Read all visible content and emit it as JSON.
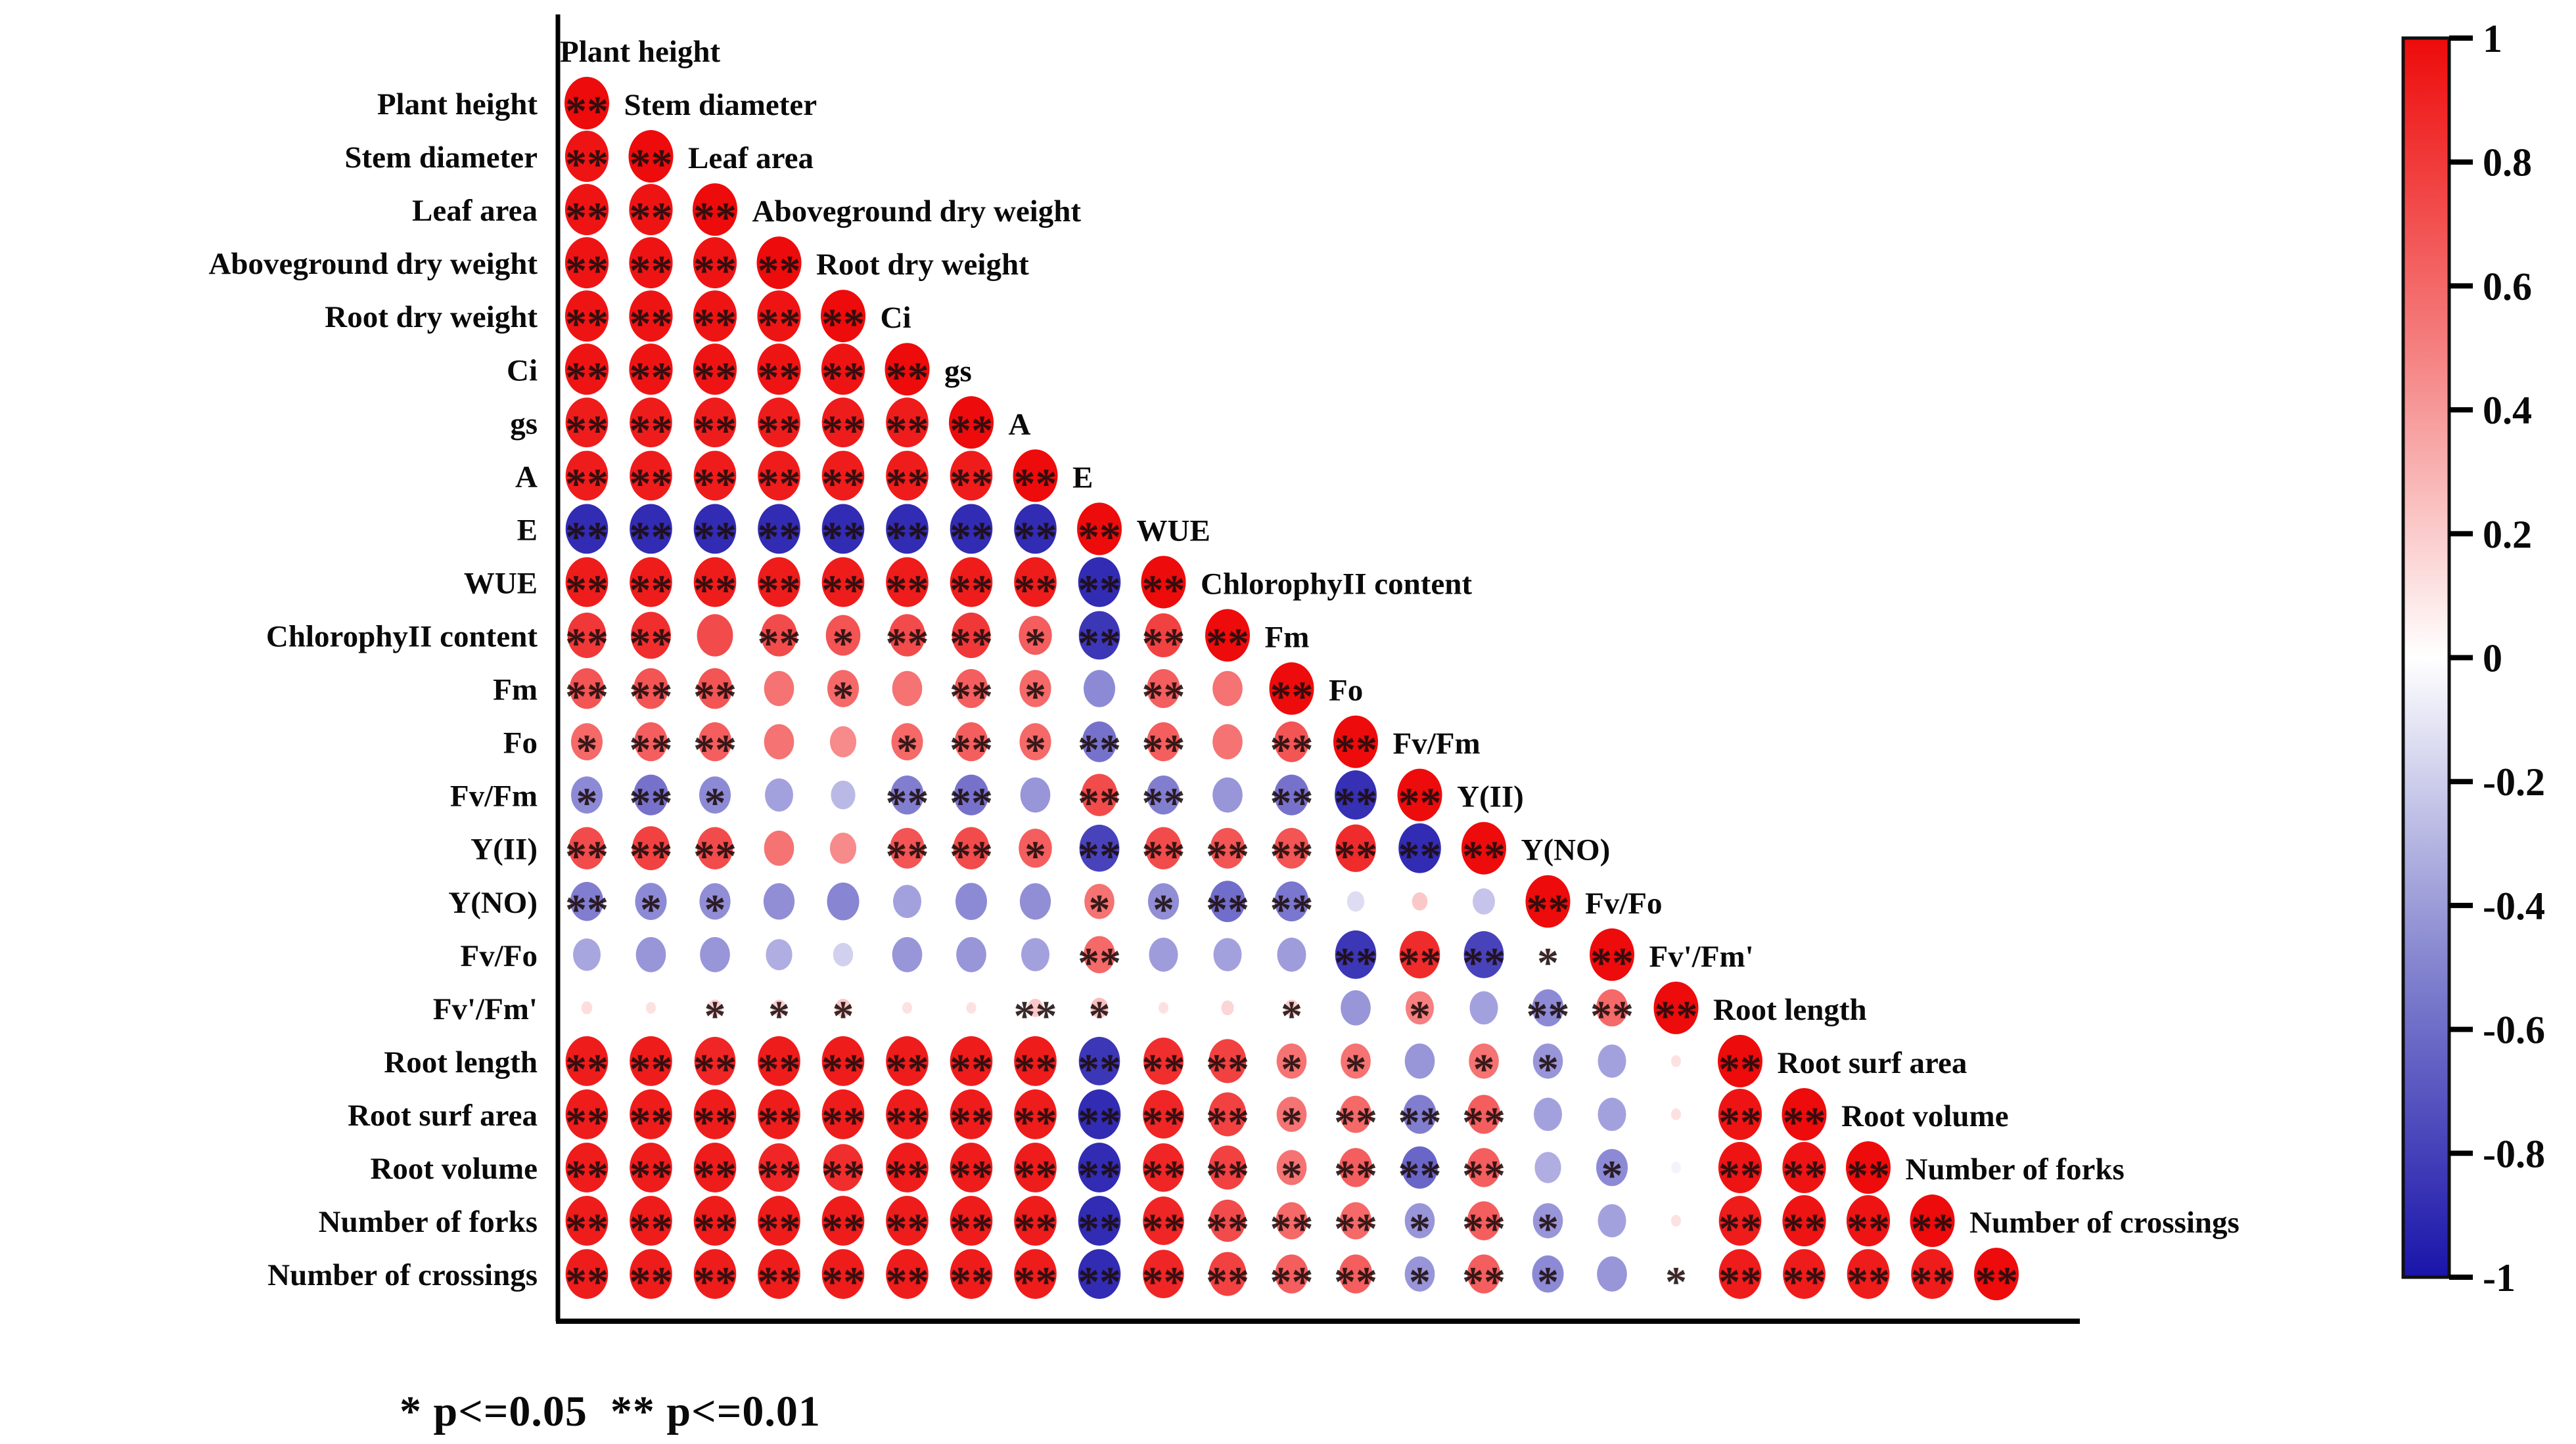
{
  "chart_data": {
    "type": "heatmap",
    "subtype": "lower-triangular-correlation-matrix",
    "variables": [
      "Plant height",
      "Stem diameter",
      "Leaf area",
      "Aboveground dry weight",
      "Root dry weight",
      "Ci",
      "gs",
      "A",
      "E",
      "WUE",
      "ChlorophyII content",
      "Fm",
      "Fo",
      "Fv/Fm",
      "Y(II)",
      "Y(NO)",
      "Fv/Fo",
      "Fv'/Fm'",
      "Root length",
      "Root surf area",
      "Root volume",
      "Number of forks",
      "Number of crossings"
    ],
    "significance_note": "* p<=0.05  ** p<=0.01",
    "sig_codes": {
      "0": "",
      "1": "*",
      "2": "**"
    },
    "colorbar": {
      "ticks": [
        "1",
        "0.8",
        "0.6",
        "0.4",
        "0.2",
        "0",
        "-0.2",
        "-0.4",
        "-0.6",
        "-0.8",
        "-1"
      ],
      "max": 1,
      "min": -1,
      "positive_color": "#ee0b0b",
      "negative_color": "#1a14aa",
      "mid_color": "#ffffff"
    },
    "matrix_comment": "rows align with variables; row i holds cells for columns 1..i as [correlation, significance_code]; diagonal = 1",
    "matrix": [
      [
        [
          1,
          2
        ]
      ],
      [
        [
          0.95,
          2
        ],
        [
          1,
          2
        ]
      ],
      [
        [
          0.95,
          2
        ],
        [
          0.95,
          2
        ],
        [
          1,
          2
        ]
      ],
      [
        [
          0.95,
          2
        ],
        [
          0.95,
          2
        ],
        [
          0.95,
          2
        ],
        [
          1,
          2
        ]
      ],
      [
        [
          0.95,
          2
        ],
        [
          0.95,
          2
        ],
        [
          0.95,
          2
        ],
        [
          0.95,
          2
        ],
        [
          1,
          2
        ]
      ],
      [
        [
          0.95,
          2
        ],
        [
          0.95,
          2
        ],
        [
          0.95,
          2
        ],
        [
          0.95,
          2
        ],
        [
          0.95,
          2
        ],
        [
          1,
          2
        ]
      ],
      [
        [
          0.9,
          2
        ],
        [
          0.9,
          2
        ],
        [
          0.9,
          2
        ],
        [
          0.9,
          2
        ],
        [
          0.9,
          2
        ],
        [
          0.9,
          2
        ],
        [
          1,
          2
        ]
      ],
      [
        [
          0.9,
          2
        ],
        [
          0.9,
          2
        ],
        [
          0.9,
          2
        ],
        [
          0.9,
          2
        ],
        [
          0.9,
          2
        ],
        [
          0.9,
          2
        ],
        [
          0.9,
          2
        ],
        [
          1,
          2
        ]
      ],
      [
        [
          -0.9,
          2
        ],
        [
          -0.9,
          2
        ],
        [
          -0.9,
          2
        ],
        [
          -0.9,
          2
        ],
        [
          -0.9,
          2
        ],
        [
          -0.9,
          2
        ],
        [
          -0.9,
          2
        ],
        [
          -0.9,
          2
        ],
        [
          1,
          2
        ]
      ],
      [
        [
          0.9,
          2
        ],
        [
          0.9,
          2
        ],
        [
          0.9,
          2
        ],
        [
          0.9,
          2
        ],
        [
          0.9,
          2
        ],
        [
          0.9,
          2
        ],
        [
          0.9,
          2
        ],
        [
          0.9,
          2
        ],
        [
          -0.9,
          2
        ],
        [
          1,
          2
        ]
      ],
      [
        [
          0.75,
          2
        ],
        [
          0.8,
          2
        ],
        [
          0.65,
          0
        ],
        [
          0.65,
          2
        ],
        [
          0.6,
          1
        ],
        [
          0.65,
          2
        ],
        [
          0.75,
          2
        ],
        [
          0.55,
          1
        ],
        [
          -0.85,
          2
        ],
        [
          0.7,
          2
        ],
        [
          1,
          2
        ]
      ],
      [
        [
          0.6,
          2
        ],
        [
          0.6,
          2
        ],
        [
          0.6,
          2
        ],
        [
          0.45,
          0
        ],
        [
          0.5,
          1
        ],
        [
          0.45,
          0
        ],
        [
          0.55,
          2
        ],
        [
          0.5,
          1
        ],
        [
          -0.5,
          0
        ],
        [
          0.55,
          2
        ],
        [
          0.45,
          0
        ],
        [
          1,
          2
        ]
      ],
      [
        [
          0.5,
          1
        ],
        [
          0.55,
          2
        ],
        [
          0.55,
          2
        ],
        [
          0.45,
          0
        ],
        [
          0.35,
          0
        ],
        [
          0.5,
          1
        ],
        [
          0.55,
          2
        ],
        [
          0.5,
          1
        ],
        [
          -0.6,
          2
        ],
        [
          0.55,
          2
        ],
        [
          0.45,
          0
        ],
        [
          0.6,
          2
        ],
        [
          1,
          2
        ]
      ],
      [
        [
          -0.5,
          1
        ],
        [
          -0.6,
          2
        ],
        [
          -0.5,
          1
        ],
        [
          -0.4,
          0
        ],
        [
          -0.3,
          0
        ],
        [
          -0.55,
          2
        ],
        [
          -0.6,
          2
        ],
        [
          -0.45,
          0
        ],
        [
          0.65,
          2
        ],
        [
          -0.55,
          2
        ],
        [
          -0.45,
          0
        ],
        [
          -0.6,
          2
        ],
        [
          -0.88,
          2
        ],
        [
          1,
          2
        ]
      ],
      [
        [
          0.65,
          2
        ],
        [
          0.7,
          2
        ],
        [
          0.65,
          2
        ],
        [
          0.45,
          0
        ],
        [
          0.35,
          0
        ],
        [
          0.6,
          2
        ],
        [
          0.65,
          2
        ],
        [
          0.55,
          1
        ],
        [
          -0.8,
          2
        ],
        [
          0.65,
          2
        ],
        [
          0.6,
          2
        ],
        [
          0.6,
          2
        ],
        [
          0.82,
          2
        ],
        [
          -0.9,
          2
        ],
        [
          1,
          2
        ]
      ],
      [
        [
          -0.55,
          2
        ],
        [
          -0.5,
          1
        ],
        [
          -0.48,
          1
        ],
        [
          -0.48,
          0
        ],
        [
          -0.52,
          0
        ],
        [
          -0.4,
          0
        ],
        [
          -0.5,
          0
        ],
        [
          -0.48,
          0
        ],
        [
          0.45,
          1
        ],
        [
          -0.48,
          1
        ],
        [
          -0.62,
          2
        ],
        [
          -0.58,
          2
        ],
        [
          -0.15,
          0
        ],
        [
          0.12,
          0
        ],
        [
          -0.25,
          0
        ],
        [
          1,
          2
        ]
      ],
      [
        [
          -0.38,
          0
        ],
        [
          -0.45,
          0
        ],
        [
          -0.45,
          0
        ],
        [
          -0.35,
          0
        ],
        [
          -0.2,
          0
        ],
        [
          -0.45,
          0
        ],
        [
          -0.45,
          0
        ],
        [
          -0.4,
          0
        ],
        [
          0.5,
          2
        ],
        [
          -0.42,
          0
        ],
        [
          -0.4,
          0
        ],
        [
          -0.42,
          0
        ],
        [
          -0.85,
          2
        ],
        [
          0.82,
          2
        ],
        [
          -0.8,
          2
        ],
        [
          0.05,
          1
        ],
        [
          1,
          2
        ]
      ],
      [
        [
          0.06,
          0
        ],
        [
          0.05,
          0
        ],
        [
          0.1,
          1
        ],
        [
          0.1,
          1
        ],
        [
          0.12,
          1
        ],
        [
          0.05,
          0
        ],
        [
          0.05,
          0
        ],
        [
          0.12,
          2
        ],
        [
          0.15,
          1
        ],
        [
          0.05,
          0
        ],
        [
          0.08,
          0
        ],
        [
          0.1,
          1
        ],
        [
          -0.45,
          0
        ],
        [
          0.4,
          1
        ],
        [
          -0.4,
          0
        ],
        [
          -0.5,
          2
        ],
        [
          0.5,
          2
        ],
        [
          1,
          2
        ]
      ],
      [
        [
          0.9,
          2
        ],
        [
          0.9,
          2
        ],
        [
          0.85,
          2
        ],
        [
          0.9,
          2
        ],
        [
          0.9,
          2
        ],
        [
          0.9,
          2
        ],
        [
          0.9,
          2
        ],
        [
          0.9,
          2
        ],
        [
          -0.85,
          2
        ],
        [
          0.8,
          2
        ],
        [
          0.7,
          2
        ],
        [
          0.45,
          1
        ],
        [
          0.45,
          1
        ],
        [
          -0.45,
          0
        ],
        [
          0.45,
          1
        ],
        [
          -0.45,
          1
        ],
        [
          -0.4,
          0
        ],
        [
          0.05,
          0
        ],
        [
          1,
          2
        ]
      ],
      [
        [
          0.9,
          2
        ],
        [
          0.9,
          2
        ],
        [
          0.9,
          2
        ],
        [
          0.9,
          2
        ],
        [
          0.9,
          2
        ],
        [
          0.9,
          2
        ],
        [
          0.9,
          2
        ],
        [
          0.9,
          2
        ],
        [
          -0.9,
          2
        ],
        [
          0.85,
          2
        ],
        [
          0.7,
          2
        ],
        [
          0.45,
          1
        ],
        [
          0.5,
          2
        ],
        [
          -0.55,
          2
        ],
        [
          0.55,
          2
        ],
        [
          -0.4,
          0
        ],
        [
          -0.4,
          0
        ],
        [
          0.05,
          0
        ],
        [
          0.95,
          2
        ],
        [
          1,
          2
        ]
      ],
      [
        [
          0.9,
          2
        ],
        [
          0.9,
          2
        ],
        [
          0.9,
          2
        ],
        [
          0.85,
          2
        ],
        [
          0.8,
          2
        ],
        [
          0.9,
          2
        ],
        [
          0.9,
          2
        ],
        [
          0.9,
          2
        ],
        [
          -0.9,
          2
        ],
        [
          0.85,
          2
        ],
        [
          0.7,
          2
        ],
        [
          0.45,
          1
        ],
        [
          0.55,
          2
        ],
        [
          -0.65,
          2
        ],
        [
          0.55,
          2
        ],
        [
          -0.35,
          0
        ],
        [
          -0.5,
          1
        ],
        [
          -0.05,
          0
        ],
        [
          0.95,
          2
        ],
        [
          0.95,
          2
        ],
        [
          1,
          2
        ]
      ],
      [
        [
          0.9,
          2
        ],
        [
          0.9,
          2
        ],
        [
          0.9,
          2
        ],
        [
          0.9,
          2
        ],
        [
          0.9,
          2
        ],
        [
          0.9,
          2
        ],
        [
          0.9,
          2
        ],
        [
          0.9,
          2
        ],
        [
          -0.9,
          2
        ],
        [
          0.85,
          2
        ],
        [
          0.65,
          2
        ],
        [
          0.5,
          2
        ],
        [
          0.5,
          2
        ],
        [
          -0.45,
          1
        ],
        [
          0.55,
          2
        ],
        [
          -0.45,
          1
        ],
        [
          -0.4,
          0
        ],
        [
          0.05,
          0
        ],
        [
          0.9,
          2
        ],
        [
          0.95,
          2
        ],
        [
          0.95,
          2
        ],
        [
          1,
          2
        ]
      ],
      [
        [
          0.9,
          2
        ],
        [
          0.9,
          2
        ],
        [
          0.9,
          2
        ],
        [
          0.9,
          2
        ],
        [
          0.9,
          2
        ],
        [
          0.9,
          2
        ],
        [
          0.9,
          2
        ],
        [
          0.9,
          2
        ],
        [
          -0.9,
          2
        ],
        [
          0.85,
          2
        ],
        [
          0.7,
          2
        ],
        [
          0.55,
          2
        ],
        [
          0.55,
          2
        ],
        [
          -0.45,
          1
        ],
        [
          0.55,
          2
        ],
        [
          -0.5,
          1
        ],
        [
          -0.45,
          0
        ],
        [
          0.05,
          1
        ],
        [
          0.9,
          2
        ],
        [
          0.9,
          2
        ],
        [
          0.9,
          2
        ],
        [
          0.9,
          2
        ],
        [
          1,
          2
        ]
      ]
    ],
    "layout": {
      "grid": "off",
      "legend_position": "right-colorbar",
      "value_range": [
        -1,
        1
      ]
    }
  }
}
